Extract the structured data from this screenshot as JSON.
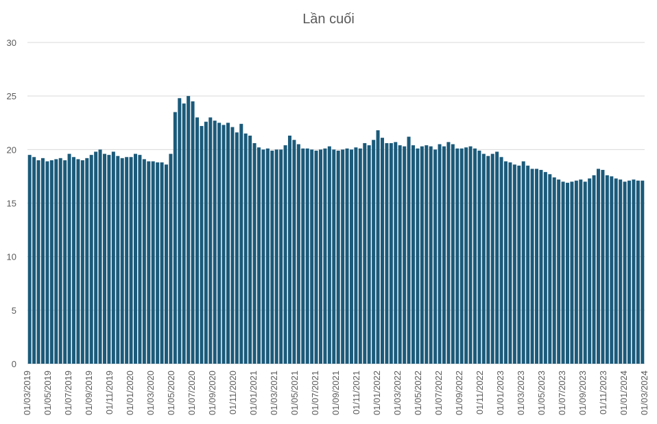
{
  "chart_data": {
    "type": "bar",
    "title": "Lần cuối",
    "xlabel": "",
    "ylabel": "",
    "ylim": [
      0,
      30
    ],
    "yticks": [
      "0",
      "5",
      "10",
      "15",
      "20",
      "25",
      "30"
    ],
    "xticks": [
      "01/03/2019",
      "01/05/2019",
      "01/07/2019",
      "01/09/2019",
      "01/11/2019",
      "01/01/2020",
      "01/03/2020",
      "01/05/2020",
      "01/07/2020",
      "01/09/2020",
      "01/11/2020",
      "01/01/2021",
      "01/03/2021",
      "01/05/2021",
      "01/07/2021",
      "01/09/2021",
      "01/11/2021",
      "01/01/2022",
      "01/03/2022",
      "01/05/2022",
      "01/07/2022",
      "01/09/2022",
      "01/11/2022",
      "01/01/2023",
      "01/03/2023",
      "01/05/2023",
      "01/07/2023",
      "01/09/2023",
      "01/11/2023",
      "01/01/2024",
      "01/03/2024"
    ],
    "grid": true,
    "legend": "none",
    "bar_color": "#1b5a7a",
    "series": [
      {
        "x_start": "01/03/2019",
        "x_end": "01/03/2024",
        "values": [
          19.5,
          19.3,
          19.0,
          19.2,
          18.9,
          19.0,
          19.1,
          19.2,
          19.0,
          19.6,
          19.3,
          19.1,
          19.0,
          19.2,
          19.5,
          19.8,
          20.0,
          19.6,
          19.5,
          19.8,
          19.4,
          19.2,
          19.3,
          19.3,
          19.6,
          19.5,
          19.1,
          18.9,
          18.9,
          18.8,
          18.8,
          18.6,
          19.6,
          23.5,
          24.8,
          24.3,
          25.0,
          24.5,
          23.0,
          22.2,
          22.6,
          23.0,
          22.7,
          22.5,
          22.3,
          22.5,
          22.1,
          21.6,
          22.4,
          21.5,
          21.3,
          20.6,
          20.2,
          20.0,
          20.1,
          19.9,
          20.0,
          20.0,
          20.4,
          21.3,
          20.9,
          20.5,
          20.1,
          20.1,
          20.0,
          19.9,
          20.0,
          20.1,
          20.3,
          20.0,
          19.9,
          20.0,
          20.1,
          20.0,
          20.2,
          20.1,
          20.6,
          20.4,
          20.9,
          21.8,
          21.1,
          20.6,
          20.6,
          20.7,
          20.4,
          20.3,
          21.2,
          20.4,
          20.1,
          20.3,
          20.4,
          20.3,
          20.0,
          20.5,
          20.3,
          20.7,
          20.5,
          20.1,
          20.1,
          20.2,
          20.3,
          20.1,
          19.9,
          19.6,
          19.4,
          19.6,
          19.8,
          19.3,
          18.9,
          18.8,
          18.6,
          18.5,
          18.9,
          18.5,
          18.2,
          18.2,
          18.1,
          17.9,
          17.7,
          17.4,
          17.2,
          17.0,
          16.9,
          17.0,
          17.1,
          17.2,
          17.0,
          17.3,
          17.6,
          18.2,
          18.1,
          17.6,
          17.5,
          17.3,
          17.2,
          17.0,
          17.1,
          17.2,
          17.1,
          17.1
        ]
      }
    ]
  }
}
